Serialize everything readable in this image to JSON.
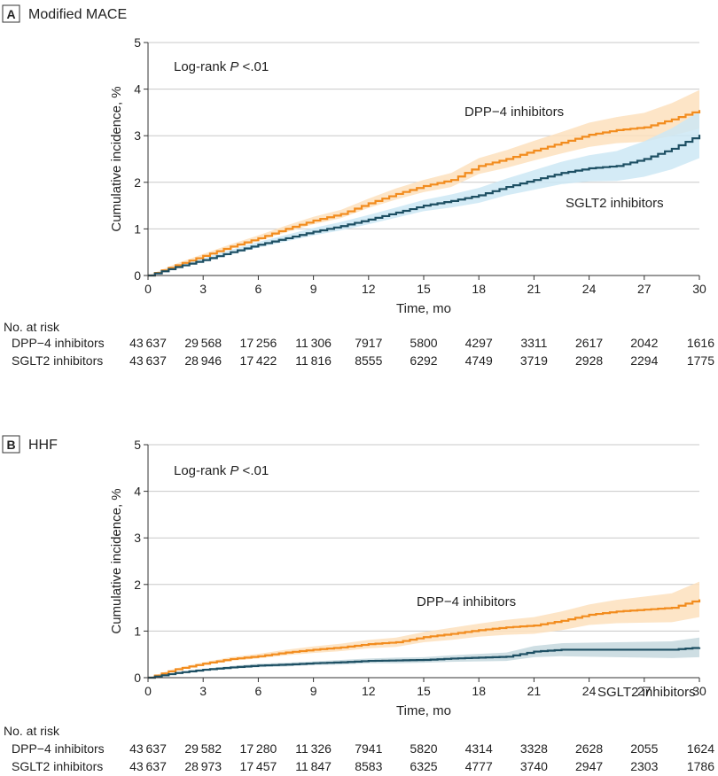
{
  "chart_data": [
    {
      "type": "line",
      "panel_letter": "A",
      "title": "Modified MACE",
      "xlabel": "Time, mo",
      "ylabel": "Cumulative incidence, %",
      "xlim": [
        0,
        30
      ],
      "ylim": [
        0,
        5
      ],
      "xticks": [
        0,
        3,
        6,
        9,
        12,
        15,
        18,
        21,
        24,
        27,
        30
      ],
      "yticks": [
        0,
        1,
        2,
        3,
        4,
        5
      ],
      "grid": "horizontal",
      "annotation_prefix": "Log-rank ",
      "annotation_italic": "P",
      "annotation_suffix": " <.01",
      "series": [
        {
          "name": "DPP−4 inhibitors",
          "color": "#f28c1e",
          "band_color": "#fde0bd",
          "x": [
            0,
            1.5,
            3,
            4.5,
            6,
            7.5,
            9,
            10.5,
            12,
            13.5,
            15,
            16.5,
            18,
            19.5,
            21,
            22.5,
            24,
            25.5,
            27,
            28.5,
            30
          ],
          "values": [
            0,
            0.22,
            0.42,
            0.62,
            0.8,
            1.0,
            1.18,
            1.32,
            1.55,
            1.75,
            1.92,
            2.05,
            2.35,
            2.5,
            2.68,
            2.85,
            3.02,
            3.12,
            3.18,
            3.35,
            3.55
          ],
          "lower": [
            0,
            0.19,
            0.38,
            0.57,
            0.74,
            0.93,
            1.1,
            1.23,
            1.45,
            1.63,
            1.79,
            1.9,
            2.18,
            2.31,
            2.47,
            2.62,
            2.76,
            2.84,
            2.87,
            3.0,
            3.15
          ],
          "upper": [
            0,
            0.25,
            0.46,
            0.67,
            0.86,
            1.07,
            1.26,
            1.41,
            1.65,
            1.87,
            2.05,
            2.2,
            2.52,
            2.69,
            2.89,
            3.08,
            3.28,
            3.4,
            3.49,
            3.7,
            3.98
          ]
        },
        {
          "name": "SGLT2 inhibitors",
          "color": "#1d4f63",
          "band_color": "#cce8f4",
          "x": [
            0,
            1.5,
            3,
            4.5,
            6,
            7.5,
            9,
            10.5,
            12,
            13.5,
            15,
            16.5,
            18,
            19.5,
            21,
            22.5,
            24,
            25.5,
            27,
            28.5,
            30
          ],
          "values": [
            0,
            0.18,
            0.33,
            0.5,
            0.66,
            0.8,
            0.94,
            1.06,
            1.2,
            1.35,
            1.5,
            1.6,
            1.72,
            1.9,
            2.05,
            2.2,
            2.3,
            2.35,
            2.5,
            2.72,
            3.02
          ],
          "lower": [
            0,
            0.15,
            0.29,
            0.45,
            0.6,
            0.73,
            0.86,
            0.97,
            1.1,
            1.24,
            1.38,
            1.46,
            1.56,
            1.72,
            1.84,
            1.96,
            2.02,
            2.03,
            2.12,
            2.28,
            2.52
          ],
          "upper": [
            0,
            0.21,
            0.37,
            0.55,
            0.72,
            0.87,
            1.02,
            1.15,
            1.3,
            1.46,
            1.62,
            1.74,
            1.88,
            2.08,
            2.26,
            2.44,
            2.58,
            2.67,
            2.88,
            3.16,
            3.52
          ]
        }
      ],
      "at_risk": {
        "title": "No. at risk",
        "rows": [
          {
            "label": "DPP−4 inhibitors",
            "values": [
              "43 637",
              "29 568",
              "17 256",
              "11 306",
              "7917",
              "5800",
              "4297",
              "3311",
              "2617",
              "2042",
              "1616"
            ]
          },
          {
            "label": "SGLT2 inhibitors",
            "values": [
              "43 637",
              "28 946",
              "17 422",
              "11 816",
              "8555",
              "6292",
              "4749",
              "3719",
              "2928",
              "2294",
              "1775"
            ]
          }
        ]
      }
    },
    {
      "type": "line",
      "panel_letter": "B",
      "title": "HHF",
      "xlabel": "Time, mo",
      "ylabel": "Cumulative incidence, %",
      "xlim": [
        0,
        30
      ],
      "ylim": [
        0,
        5
      ],
      "xticks": [
        0,
        3,
        6,
        9,
        12,
        15,
        18,
        21,
        24,
        27,
        30
      ],
      "yticks": [
        0,
        1,
        2,
        3,
        4,
        5
      ],
      "grid": "horizontal",
      "annotation_prefix": "Log-rank ",
      "annotation_italic": "P",
      "annotation_suffix": " <.01",
      "series": [
        {
          "name": "DPP−4 inhibitors",
          "color": "#f28c1e",
          "band_color": "#fde0bd",
          "x": [
            0,
            1.5,
            3,
            4.5,
            6,
            7.5,
            9,
            10.5,
            12,
            13.5,
            15,
            16.5,
            18,
            19.5,
            21,
            22.5,
            24,
            25.5,
            27,
            28.5,
            30
          ],
          "values": [
            0,
            0.18,
            0.3,
            0.4,
            0.46,
            0.54,
            0.6,
            0.65,
            0.72,
            0.76,
            0.87,
            0.94,
            1.02,
            1.08,
            1.12,
            1.22,
            1.35,
            1.42,
            1.46,
            1.5,
            1.68
          ],
          "lower": [
            0,
            0.16,
            0.27,
            0.36,
            0.41,
            0.48,
            0.53,
            0.57,
            0.63,
            0.66,
            0.76,
            0.81,
            0.88,
            0.92,
            0.94,
            1.02,
            1.13,
            1.17,
            1.18,
            1.19,
            1.3
          ],
          "upper": [
            0,
            0.2,
            0.33,
            0.44,
            0.51,
            0.6,
            0.67,
            0.73,
            0.81,
            0.86,
            0.98,
            1.07,
            1.16,
            1.24,
            1.3,
            1.42,
            1.57,
            1.67,
            1.74,
            1.81,
            2.06
          ]
        },
        {
          "name": "SGLT2 inhibitors",
          "color": "#1d4f63",
          "band_color": "#c5d8de",
          "x": [
            0,
            1.5,
            3,
            4.5,
            6,
            7.5,
            9,
            10.5,
            12,
            13.5,
            15,
            16.5,
            18,
            19.5,
            21,
            22.5,
            24,
            25.5,
            27,
            28.5,
            30
          ],
          "values": [
            0,
            0.1,
            0.17,
            0.22,
            0.26,
            0.28,
            0.31,
            0.33,
            0.36,
            0.37,
            0.38,
            0.41,
            0.43,
            0.45,
            0.56,
            0.6,
            0.6,
            0.6,
            0.6,
            0.6,
            0.65
          ],
          "lower": [
            0,
            0.08,
            0.15,
            0.19,
            0.22,
            0.24,
            0.27,
            0.28,
            0.31,
            0.31,
            0.32,
            0.34,
            0.35,
            0.36,
            0.44,
            0.46,
            0.45,
            0.44,
            0.43,
            0.42,
            0.44
          ],
          "upper": [
            0,
            0.12,
            0.19,
            0.25,
            0.3,
            0.32,
            0.35,
            0.38,
            0.41,
            0.43,
            0.44,
            0.48,
            0.51,
            0.54,
            0.68,
            0.74,
            0.75,
            0.76,
            0.77,
            0.78,
            0.86
          ]
        }
      ],
      "at_risk": {
        "title": "No. at risk",
        "rows": [
          {
            "label": "DPP−4 inhibitors",
            "values": [
              "43 637",
              "29 582",
              "17 280",
              "11 326",
              "7941",
              "5820",
              "4314",
              "3328",
              "2628",
              "2055",
              "1624"
            ]
          },
          {
            "label": "SGLT2 inhibitors",
            "values": [
              "43 637",
              "28 973",
              "17 457",
              "11 847",
              "8583",
              "6325",
              "4777",
              "3740",
              "2947",
              "2303",
              "1786"
            ]
          }
        ]
      }
    }
  ]
}
